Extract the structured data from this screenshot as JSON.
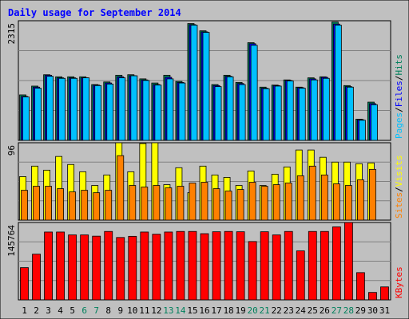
{
  "title": "Daily usage for September 2014",
  "colors": {
    "background": "#c0c0c0",
    "frame": "#000000",
    "title": "#0000ff",
    "hits": "#00805c",
    "files": "#0000ff",
    "pages": "#00c0ff",
    "visits": "#ffff00",
    "sites": "#ff8000",
    "kbytes": "#ff0000",
    "weekend_day": "#00805c",
    "weekday": "#000000"
  },
  "chart_data": {
    "type": "bar",
    "categories": [
      "1",
      "2",
      "3",
      "4",
      "5",
      "6",
      "7",
      "8",
      "9",
      "10",
      "11",
      "12",
      "13",
      "14",
      "15",
      "16",
      "17",
      "18",
      "19",
      "20",
      "21",
      "22",
      "23",
      "24",
      "25",
      "26",
      "27",
      "28",
      "29",
      "30",
      "31"
    ],
    "weekend_days": [
      "6",
      "7",
      "13",
      "14",
      "20",
      "21",
      "27",
      "28"
    ],
    "panels": [
      {
        "name": "requests",
        "max_label": "2315",
        "ymax": 2315,
        "legend": [
          "Pages",
          "/",
          "Files",
          "/",
          "Hits"
        ],
        "legend_colors": [
          "pages",
          "frame",
          "files",
          "frame",
          "hits"
        ],
        "series": [
          {
            "name": "Hits",
            "color_key": "hits",
            "values": [
              880,
              1050,
              1270,
              1230,
              1230,
              1230,
              1080,
              1130,
              1260,
              1270,
              1190,
              1110,
              1260,
              1140,
              2260,
              2120,
              1080,
              1260,
              1120,
              1890,
              1030,
              1070,
              1170,
              1030,
              1210,
              1230,
              2290,
              1060,
              410,
              740,
              0
            ]
          },
          {
            "name": "Files",
            "color_key": "files",
            "values": [
              850,
              1030,
              1260,
              1210,
              1210,
              1210,
              1070,
              1110,
              1230,
              1250,
              1170,
              1080,
              1220,
              1120,
              2240,
              2100,
              1060,
              1240,
              1100,
              1870,
              1010,
              1060,
              1160,
              1020,
              1190,
              1220,
              2250,
              1040,
              400,
              710,
              0
            ]
          },
          {
            "name": "Pages",
            "color_key": "pages",
            "values": [
              840,
              1010,
              1240,
              1200,
              1200,
              1210,
              1060,
              1090,
              1210,
              1250,
              1160,
              1070,
              1190,
              1110,
              2230,
              2090,
              1040,
              1230,
              1080,
              1840,
              1000,
              1050,
              1150,
              1010,
              1170,
              1200,
              2230,
              1030,
              390,
              690,
              0
            ]
          }
        ]
      },
      {
        "name": "visitors",
        "max_label": "96",
        "ymax": 96,
        "legend": [
          "Sites",
          "/",
          "Visits"
        ],
        "legend_colors": [
          "sites",
          "frame",
          "visits"
        ],
        "series": [
          {
            "name": "Visits",
            "color_key": "visits",
            "values": [
              54,
              67,
              62,
              79,
              69,
              60,
              43,
              56,
              96,
              60,
              95,
              96,
              44,
              65,
              34,
              67,
              56,
              53,
              43,
              61,
              43,
              57,
              66,
              87,
              87,
              78,
              72,
              72,
              70,
              71,
              0
            ]
          },
          {
            "name": "Sites",
            "color_key": "sites",
            "values": [
              37,
              42,
              42,
              39,
              35,
              37,
              34,
              37,
              80,
              43,
              41,
              43,
              40,
              42,
              46,
              47,
              39,
              36,
              38,
              47,
              42,
              44,
              46,
              55,
              67,
              56,
              45,
              43,
              50,
              63,
              0
            ]
          }
        ]
      },
      {
        "name": "transfer",
        "max_label": "145764",
        "ymax": 145764,
        "legend": [
          "KBytes"
        ],
        "legend_colors": [
          "kbytes"
        ],
        "series": [
          {
            "name": "KBytes",
            "color_key": "kbytes",
            "values": [
              60700,
              86100,
              127800,
              127800,
              122400,
              122400,
              120000,
              128900,
              117500,
              119700,
              127800,
              123700,
              127800,
              128900,
              128900,
              124700,
              128300,
              128900,
              128300,
              109900,
              128300,
              122400,
              128900,
              92300,
              128900,
              128900,
              137500,
              145800,
              51300,
              14000,
              24400
            ]
          }
        ]
      }
    ]
  }
}
